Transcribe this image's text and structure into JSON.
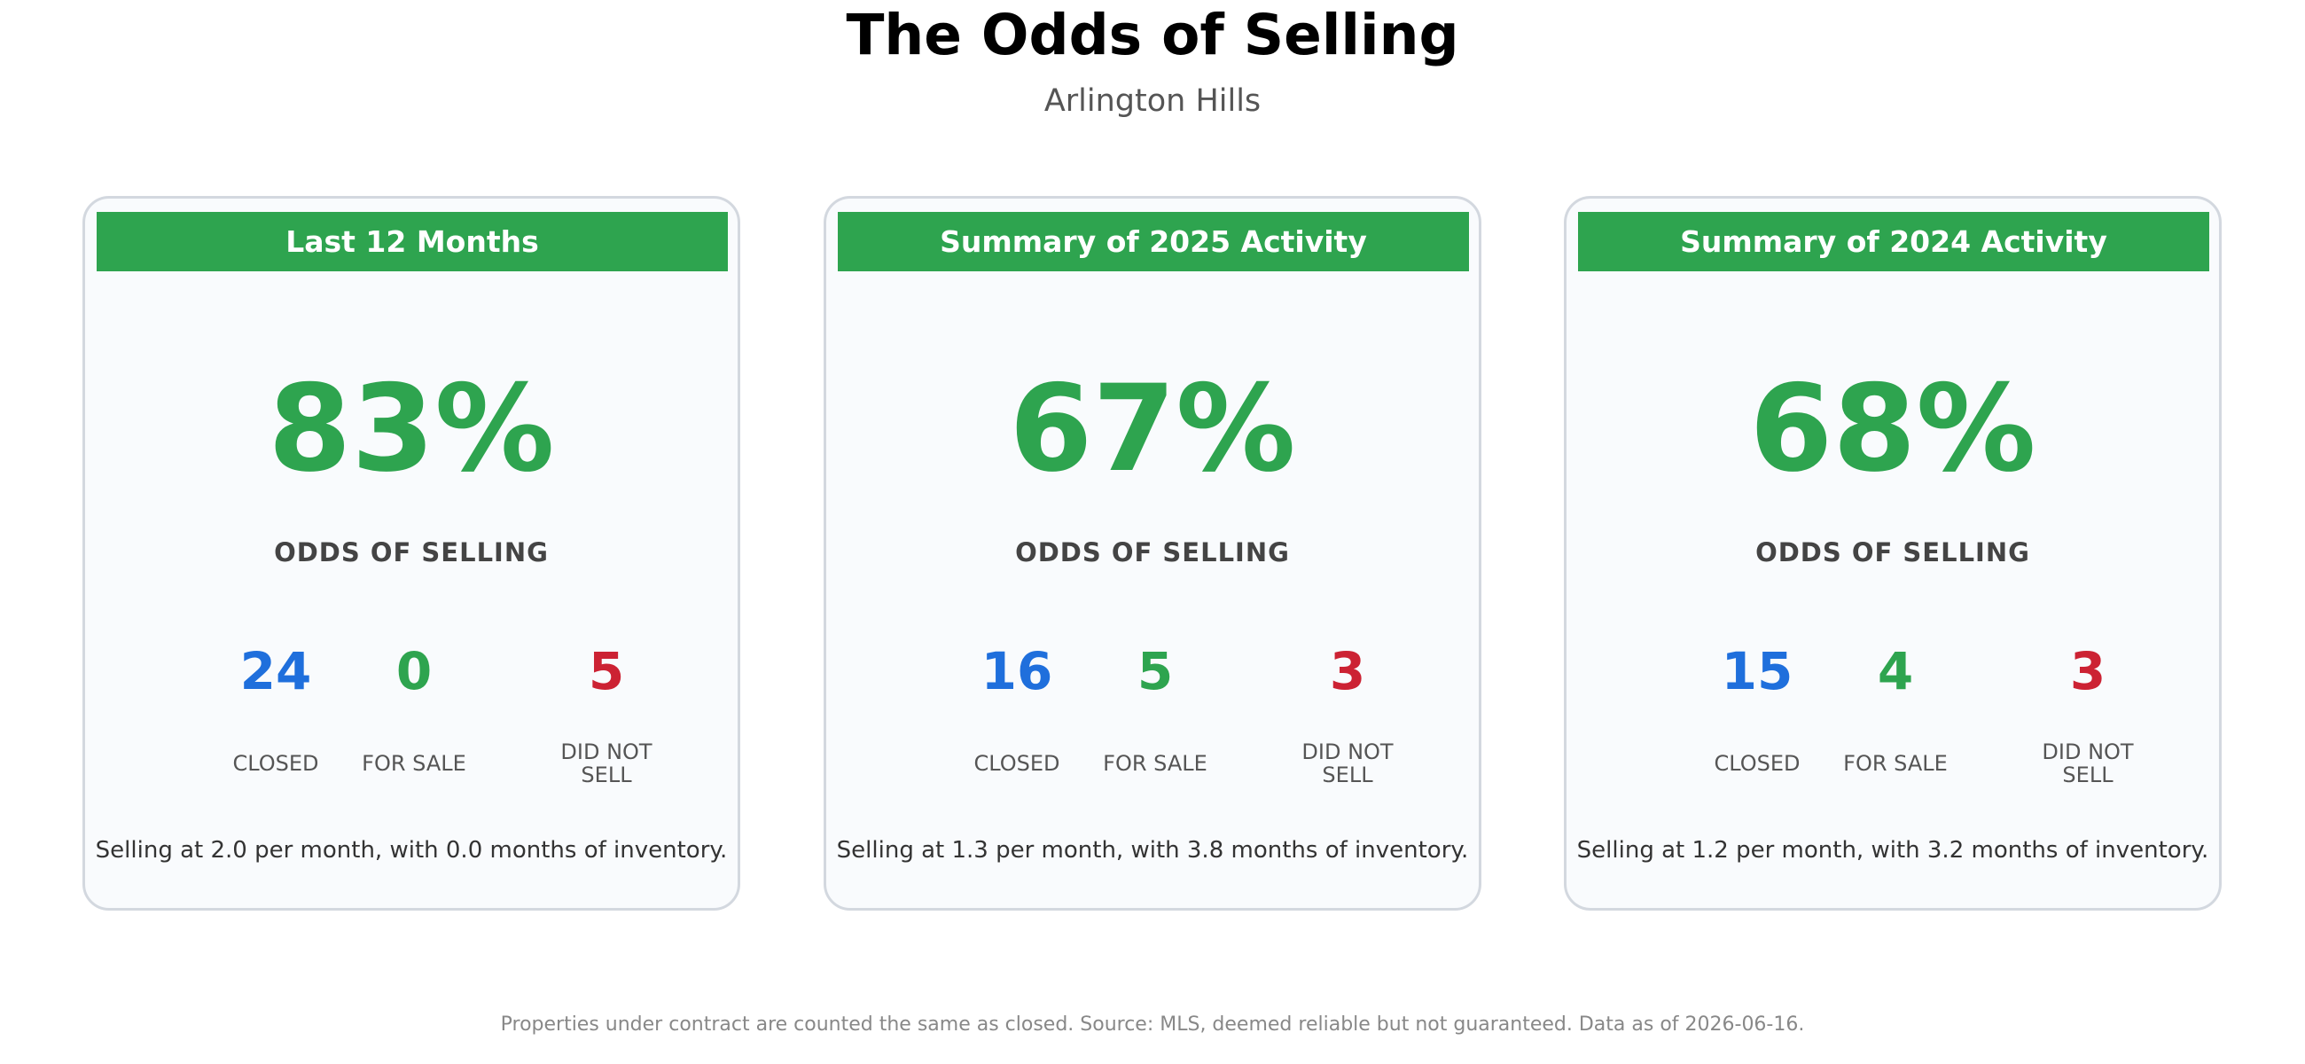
{
  "header": {
    "title": "The Odds of Selling",
    "subtitle": "Arlington Hills"
  },
  "chart_data": {
    "type": "table",
    "title": "The Odds of Selling",
    "subtitle": "Arlington Hills",
    "cards": [
      {
        "header": "Last 12 Months",
        "odds": "83%",
        "odds_label": "ODDS OF SELLING",
        "stats": [
          {
            "value": "24",
            "label": "CLOSED"
          },
          {
            "value": "0",
            "label": "FOR SALE"
          },
          {
            "value": "5",
            "label_line1": "DID NOT",
            "label_line2": "SELL"
          }
        ],
        "summary": "Selling at 2.0 per month, with 0.0 months of inventory."
      },
      {
        "header": "Summary of 2025 Activity",
        "odds": "67%",
        "odds_label": "ODDS OF SELLING",
        "stats": [
          {
            "value": "16",
            "label": "CLOSED"
          },
          {
            "value": "5",
            "label": "FOR SALE"
          },
          {
            "value": "3",
            "label_line1": "DID NOT",
            "label_line2": "SELL"
          }
        ],
        "summary": "Selling at 1.3 per month, with 3.8 months of inventory."
      },
      {
        "header": "Summary of 2024 Activity",
        "odds": "68%",
        "odds_label": "ODDS OF SELLING",
        "stats": [
          {
            "value": "15",
            "label": "CLOSED"
          },
          {
            "value": "4",
            "label": "FOR SALE"
          },
          {
            "value": "3",
            "label_line1": "DID NOT",
            "label_line2": "SELL"
          }
        ],
        "summary": "Selling at 1.2 per month, with 3.2 months of inventory."
      }
    ]
  },
  "footer": {
    "note": "Properties under contract are counted the same as closed. Source: MLS, deemed reliable but not guaranteed. Data as of 2026-06-16."
  },
  "colors": {
    "accent_green": "#2ea44f",
    "closed_blue": "#1f6fdc",
    "did_not_sell_red": "#cc2233",
    "card_border": "#d3d8df"
  }
}
